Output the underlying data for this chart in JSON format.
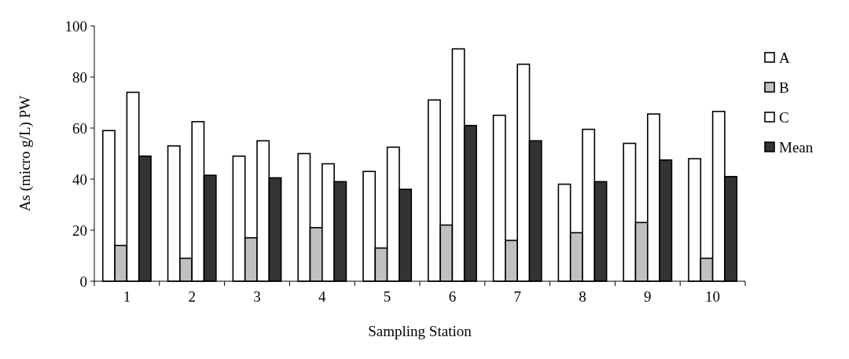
{
  "chart_data": {
    "type": "bar",
    "xlabel": "Sampling Station",
    "ylabel": "As (micro g/L) PW",
    "categories": [
      "1",
      "2",
      "3",
      "4",
      "5",
      "6",
      "7",
      "8",
      "9",
      "10"
    ],
    "series": [
      {
        "name": "A",
        "color": "#ffffff",
        "values": [
          59,
          53,
          49,
          50,
          43,
          71,
          65,
          38,
          54,
          48
        ]
      },
      {
        "name": "B",
        "color": "#c0c0c0",
        "values": [
          14,
          9,
          17,
          21,
          13,
          22,
          16,
          19,
          23,
          9
        ]
      },
      {
        "name": "C",
        "color": "#ffffff",
        "values": [
          74,
          62.5,
          55,
          46,
          52.5,
          91,
          85,
          59.5,
          65.5,
          66.5
        ]
      },
      {
        "name": "Mean",
        "color": "#333333",
        "values": [
          49,
          41.5,
          40.5,
          39,
          36,
          61,
          55,
          39,
          47.5,
          41
        ]
      }
    ],
    "ylim": [
      0,
      100
    ],
    "yticks": [
      0,
      20,
      40,
      60,
      80,
      100
    ],
    "grid": false,
    "legend": "right"
  }
}
